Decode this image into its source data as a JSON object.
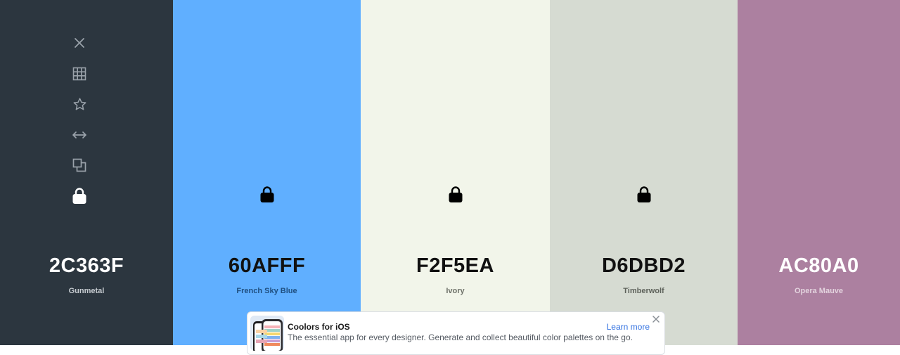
{
  "palette": {
    "colors": [
      {
        "hex": "2C363F",
        "name": "Gunmetal",
        "bg": "#2c363f",
        "text": "#ffffff",
        "sub": "#c6cbd0",
        "locked": true
      },
      {
        "hex": "60AFFF",
        "name": "French Sky Blue",
        "bg": "#60afff",
        "text": "#111111",
        "sub": "#1f4f80",
        "locked": true
      },
      {
        "hex": "F2F5EA",
        "name": "Ivory",
        "bg": "#f2f5ea",
        "text": "#111111",
        "sub": "#6d7068",
        "locked": true
      },
      {
        "hex": "D6DBD2",
        "name": "Timberwolf",
        "bg": "#d6dbd2",
        "text": "#111111",
        "sub": "#5e625b",
        "locked": true
      },
      {
        "hex": "AC80A0",
        "name": "Opera Mauve",
        "bg": "#ac80a0",
        "text": "#ffffff",
        "sub": "#e3d3de",
        "locked": false
      }
    ]
  },
  "tools": [
    "close-icon",
    "grid-icon",
    "star-icon",
    "arrows-horizontal-icon",
    "copy-icon",
    "lock-icon"
  ],
  "banner": {
    "title": "Coolors for iOS",
    "description": "The essential app for every designer. Generate and collect beautiful color palettes on the go.",
    "link": "Learn more"
  }
}
